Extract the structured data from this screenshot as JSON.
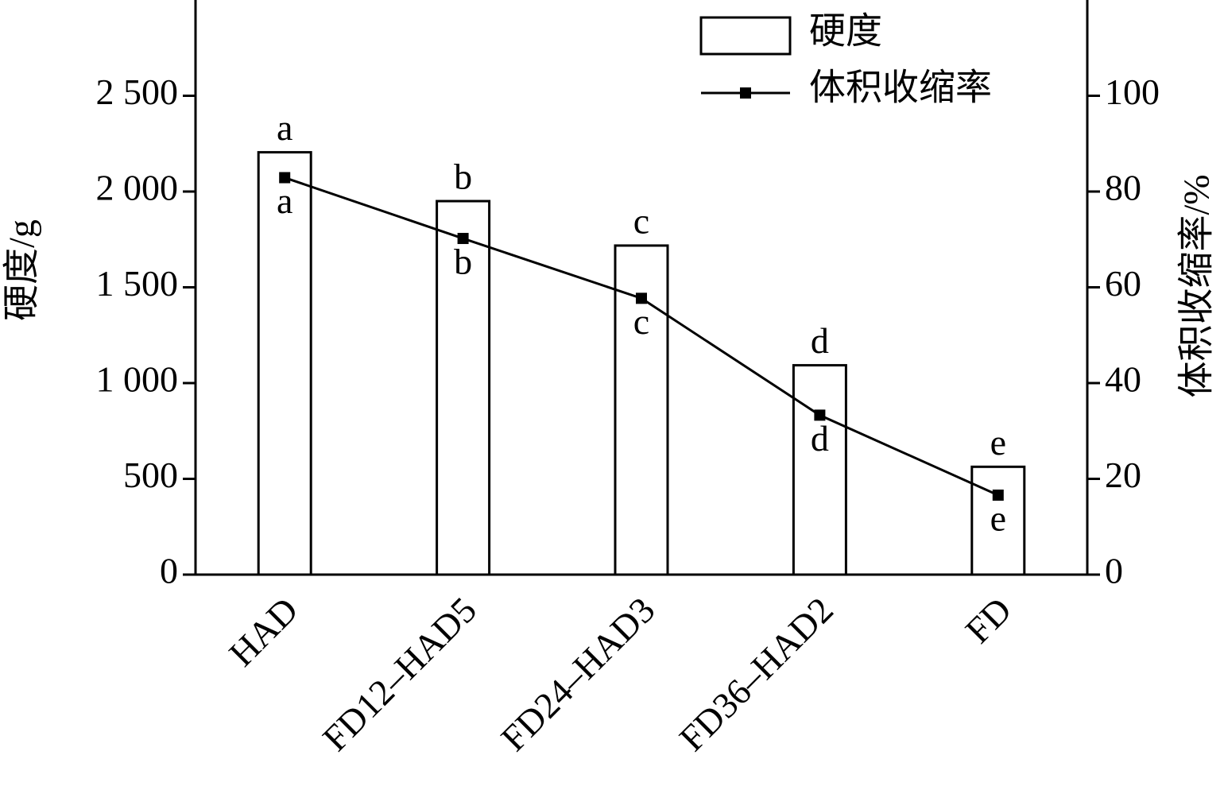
{
  "chart_data": {
    "type": "bar-line",
    "categories": [
      "HAD",
      "FD12–HAD5",
      "FD24–HAD3",
      "FD36–HAD2",
      "FD"
    ],
    "series": [
      {
        "name": "硬度",
        "type": "bar",
        "color": "#ffffff",
        "values": [
          2205,
          1950,
          1718,
          1093,
          563
        ],
        "significance": [
          "a",
          "b",
          "c",
          "d",
          "e"
        ]
      },
      {
        "name": "体积收缩率",
        "type": "line",
        "axis": "y2",
        "color": "#000000",
        "values": [
          82.9,
          70.2,
          57.7,
          33.3,
          16.6
        ],
        "significance": [
          "a",
          "b",
          "c",
          "d",
          "e"
        ]
      }
    ],
    "y_label": "硬度/g",
    "y2_label": "体积收缩率/%",
    "ylim": [
      0,
      3000
    ],
    "yticks": [
      0,
      500,
      {
        "value": 1000,
        "label": "1 000"
      },
      {
        "value": 1500,
        "label": "1 500"
      },
      {
        "value": 2000,
        "label": "2 000"
      },
      {
        "value": 2500,
        "label": "2 500"
      }
    ],
    "y2lim": [
      0,
      120
    ],
    "y2ticks": [
      0,
      20,
      40,
      60,
      80,
      100
    ],
    "legend": "top-right"
  }
}
